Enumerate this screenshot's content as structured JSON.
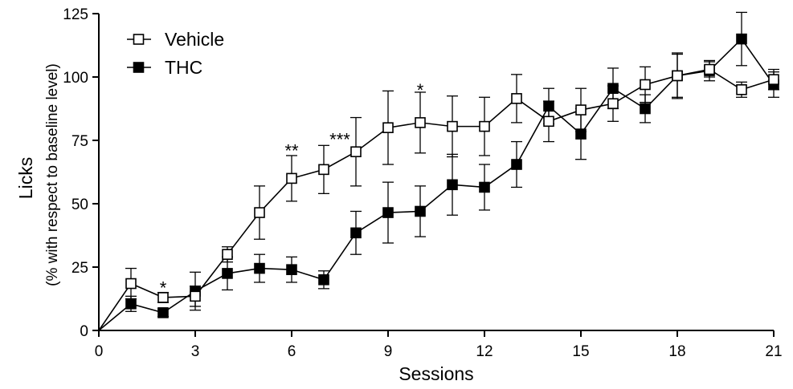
{
  "chart_data": {
    "type": "line",
    "xlabel": "Sessions",
    "ylabel_main": "Licks",
    "ylabel_sub": "(% with respect to baseline level)",
    "xlim": [
      0,
      21
    ],
    "ylim": [
      0,
      125
    ],
    "x_ticks": [
      0,
      3,
      6,
      9,
      12,
      15,
      18,
      21
    ],
    "y_ticks": [
      0,
      25,
      50,
      75,
      100,
      125
    ],
    "grid": false,
    "legend_position": "top-left",
    "series": [
      {
        "name": "Vehicle",
        "marker": "open-square",
        "color": "#000000",
        "points": [
          {
            "x": 0,
            "y": 0,
            "err": 0
          },
          {
            "x": 1,
            "y": 18.5,
            "err": 6
          },
          {
            "x": 2,
            "y": 13,
            "err": 2
          },
          {
            "x": 3,
            "y": 13.5,
            "err": 4
          },
          {
            "x": 4,
            "y": 30,
            "err": 3
          },
          {
            "x": 5,
            "y": 46.5,
            "err": 10.5
          },
          {
            "x": 6,
            "y": 60,
            "err": 9
          },
          {
            "x": 7,
            "y": 63.5,
            "err": 9.5
          },
          {
            "x": 8,
            "y": 70.5,
            "err": 13.5
          },
          {
            "x": 9,
            "y": 80,
            "err": 14.5
          },
          {
            "x": 10,
            "y": 82,
            "err": 12
          },
          {
            "x": 11,
            "y": 80.5,
            "err": 12
          },
          {
            "x": 12,
            "y": 80.5,
            "err": 11.5
          },
          {
            "x": 13,
            "y": 91.5,
            "err": 9.5
          },
          {
            "x": 14,
            "y": 82.5,
            "err": 8
          },
          {
            "x": 15,
            "y": 87,
            "err": 8.5
          },
          {
            "x": 16,
            "y": 89.5,
            "err": 7
          },
          {
            "x": 17,
            "y": 97,
            "err": 7
          },
          {
            "x": 18,
            "y": 100.5,
            "err": 9
          },
          {
            "x": 19,
            "y": 103,
            "err": 3
          },
          {
            "x": 20,
            "y": 95,
            "err": 3
          },
          {
            "x": 21,
            "y": 99,
            "err": 4
          }
        ]
      },
      {
        "name": "THC",
        "marker": "filled-square",
        "color": "#000000",
        "points": [
          {
            "x": 0,
            "y": 0,
            "err": 0
          },
          {
            "x": 1,
            "y": 10.5,
            "err": 3
          },
          {
            "x": 2,
            "y": 7,
            "err": 1.5
          },
          {
            "x": 3,
            "y": 15.5,
            "err": 7.5
          },
          {
            "x": 4,
            "y": 22.5,
            "err": 6.5
          },
          {
            "x": 5,
            "y": 24.5,
            "err": 5.5
          },
          {
            "x": 6,
            "y": 24,
            "err": 5
          },
          {
            "x": 7,
            "y": 20,
            "err": 3.5
          },
          {
            "x": 8,
            "y": 38.5,
            "err": 8.5
          },
          {
            "x": 9,
            "y": 46.5,
            "err": 12
          },
          {
            "x": 10,
            "y": 47,
            "err": 10
          },
          {
            "x": 11,
            "y": 57.5,
            "err": 12
          },
          {
            "x": 12,
            "y": 56.5,
            "err": 9
          },
          {
            "x": 13,
            "y": 65.5,
            "err": 9
          },
          {
            "x": 14,
            "y": 88.5,
            "err": 7
          },
          {
            "x": 15,
            "y": 77.5,
            "err": 10
          },
          {
            "x": 16,
            "y": 95.5,
            "err": 8
          },
          {
            "x": 17,
            "y": 87.5,
            "err": 5.5
          },
          {
            "x": 18,
            "y": 100.5,
            "err": 8.5
          },
          {
            "x": 19,
            "y": 102.5,
            "err": 4
          },
          {
            "x": 20,
            "y": 115,
            "err": 10.5
          },
          {
            "x": 21,
            "y": 97,
            "err": 5
          }
        ]
      }
    ],
    "annotations": [
      {
        "x": 2,
        "y": 17,
        "text": "*"
      },
      {
        "x": 6,
        "y": 71,
        "text": "**"
      },
      {
        "x": 7.5,
        "y": 75.5,
        "text": "***"
      },
      {
        "x": 10,
        "y": 95,
        "text": "*"
      }
    ]
  }
}
